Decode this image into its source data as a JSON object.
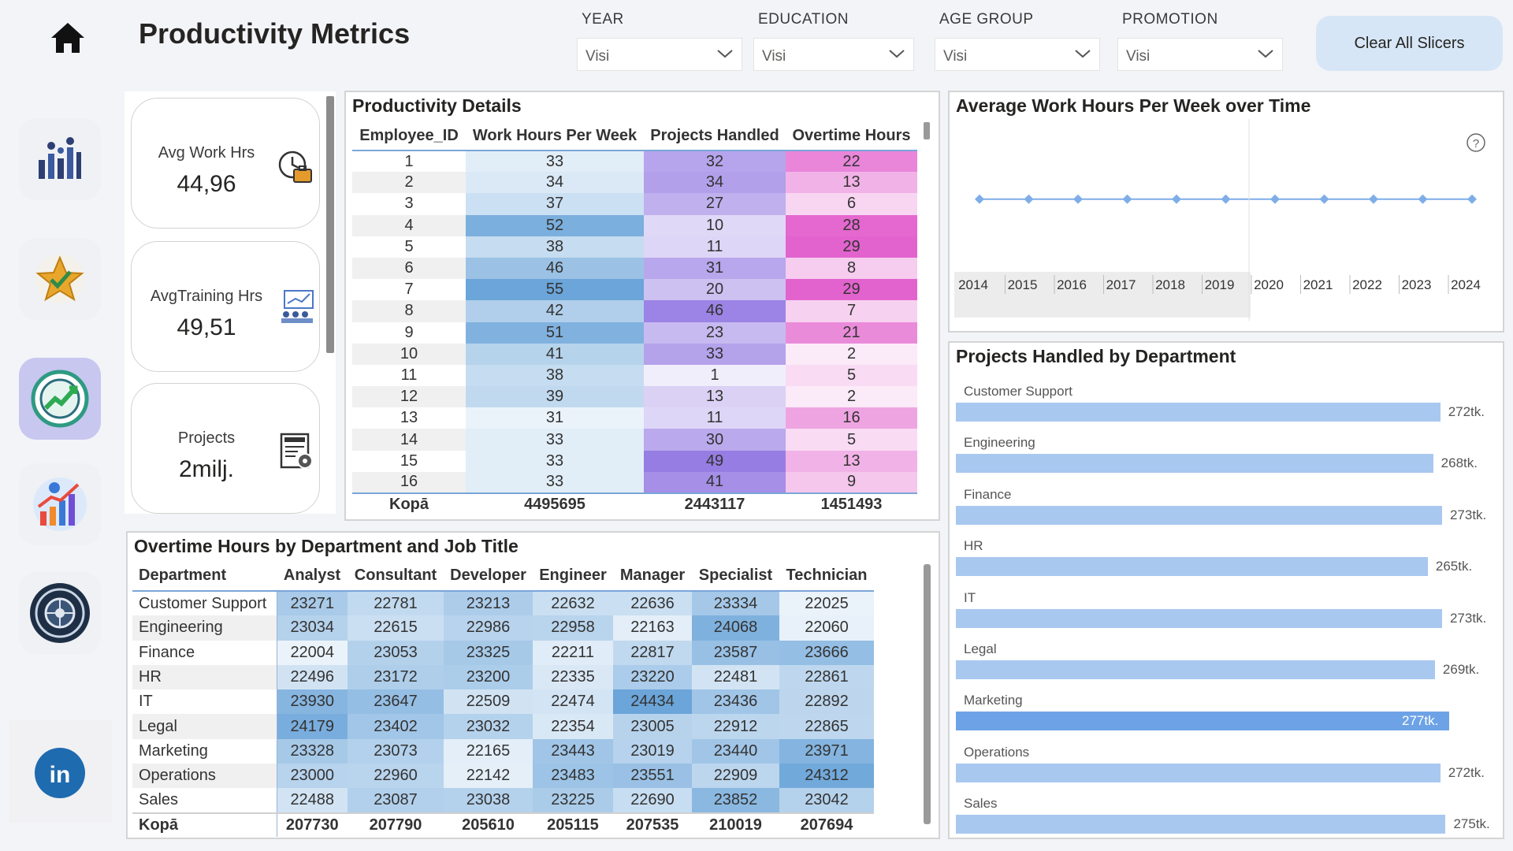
{
  "header": {
    "title": "Productivity Metrics",
    "clear_label": "Clear All Slicers",
    "slicers": [
      {
        "label": "YEAR",
        "value": "Visi"
      },
      {
        "label": "EDUCATION",
        "value": "Visi"
      },
      {
        "label": "AGE GROUP",
        "value": "Visi"
      },
      {
        "label": "PROMOTION",
        "value": "Visi"
      }
    ]
  },
  "nav": [
    "people-chart-icon",
    "star-check-icon",
    "gauge-growth-icon",
    "growth-chart-icon",
    "settings-globe-icon",
    "linkedin-icon"
  ],
  "kpis": [
    {
      "label": "Avg Work Hrs",
      "value": "44,96",
      "icon": "clock-briefcase-icon"
    },
    {
      "label": "AvgTraining Hrs",
      "value": "49,51",
      "icon": "training-icon"
    },
    {
      "label": "Projects",
      "value": "2milj.",
      "icon": "project-document-icon"
    }
  ],
  "productivity": {
    "title": "Productivity Details",
    "columns": [
      "Employee_ID",
      "Work Hours Per Week",
      "Projects Handled",
      "Overtime Hours"
    ],
    "rows": [
      [
        "1",
        "33",
        "32",
        "22"
      ],
      [
        "2",
        "34",
        "34",
        "13"
      ],
      [
        "3",
        "37",
        "27",
        "6"
      ],
      [
        "4",
        "52",
        "10",
        "28"
      ],
      [
        "5",
        "38",
        "11",
        "29"
      ],
      [
        "6",
        "46",
        "31",
        "8"
      ],
      [
        "7",
        "55",
        "20",
        "29"
      ],
      [
        "8",
        "42",
        "46",
        "7"
      ],
      [
        "9",
        "51",
        "23",
        "21"
      ],
      [
        "10",
        "41",
        "33",
        "2"
      ],
      [
        "11",
        "38",
        "1",
        "5"
      ],
      [
        "12",
        "39",
        "13",
        "2"
      ],
      [
        "13",
        "31",
        "11",
        "16"
      ],
      [
        "14",
        "33",
        "30",
        "5"
      ],
      [
        "15",
        "33",
        "49",
        "13"
      ],
      [
        "16",
        "33",
        "41",
        "9"
      ]
    ],
    "total": [
      "Kopā",
      "4495695",
      "2443117",
      "1451493"
    ],
    "colors": {
      "work": "#5b9bd5",
      "projects": "#8a6ee0",
      "overtime": "#e052c8"
    }
  },
  "chart_data": [
    {
      "type": "line",
      "title": "Average Work Hours Per Week over Time",
      "x": [
        2014,
        2015,
        2016,
        2017,
        2018,
        2019,
        2020,
        2021,
        2022,
        2023,
        2024
      ],
      "y": [
        44.96,
        44.96,
        44.96,
        44.96,
        44.96,
        44.96,
        44.96,
        44.96,
        44.96,
        44.96,
        44.96
      ],
      "xlabel": "",
      "ylabel": "",
      "color": "#7eaee8"
    },
    {
      "type": "bar",
      "title": "Projects Handled by Department",
      "categories": [
        "Customer Support",
        "Engineering",
        "Finance",
        "HR",
        "IT",
        "Legal",
        "Marketing",
        "Operations",
        "Sales"
      ],
      "values": [
        272,
        268,
        273,
        265,
        273,
        269,
        277,
        272,
        275
      ],
      "labels": [
        "272tk.",
        "268tk.",
        "273tk.",
        "265tk.",
        "273tk.",
        "269tk.",
        "277tk.",
        "272tk.",
        "275tk."
      ],
      "color": "#a8c8f0",
      "highlight_color": "#6da3e6"
    },
    {
      "type": "heatmap",
      "title": "Overtime Hours by Department and Job Title",
      "row_header": "Department",
      "columns": [
        "Analyst",
        "Consultant",
        "Developer",
        "Engineer",
        "Manager",
        "Specialist",
        "Technician"
      ],
      "rows": [
        {
          "name": "Customer Support",
          "values": [
            23271,
            22781,
            23213,
            22632,
            22636,
            23334,
            22025
          ]
        },
        {
          "name": "Engineering",
          "values": [
            23034,
            22615,
            22986,
            22958,
            22163,
            24068,
            22060
          ]
        },
        {
          "name": "Finance",
          "values": [
            22004,
            23053,
            23325,
            22211,
            22817,
            23587,
            23666
          ]
        },
        {
          "name": "HR",
          "values": [
            22496,
            23172,
            23200,
            22335,
            23220,
            22481,
            22861
          ]
        },
        {
          "name": "IT",
          "values": [
            23930,
            23647,
            22509,
            22474,
            24434,
            23436,
            22892
          ]
        },
        {
          "name": "Legal",
          "values": [
            24179,
            23402,
            23032,
            22354,
            23005,
            22912,
            22865
          ]
        },
        {
          "name": "Marketing",
          "values": [
            23328,
            23073,
            22165,
            23443,
            23019,
            23440,
            23971
          ]
        },
        {
          "name": "Operations",
          "values": [
            23000,
            22960,
            22142,
            23483,
            23551,
            22909,
            24312
          ]
        },
        {
          "name": "Sales",
          "values": [
            22488,
            23087,
            23038,
            23225,
            22690,
            23852,
            23042
          ]
        }
      ],
      "total_label": "Kopā",
      "totals": [
        207730,
        207790,
        205610,
        205115,
        207535,
        210019,
        207694
      ],
      "color": "#5b9bd5"
    }
  ]
}
